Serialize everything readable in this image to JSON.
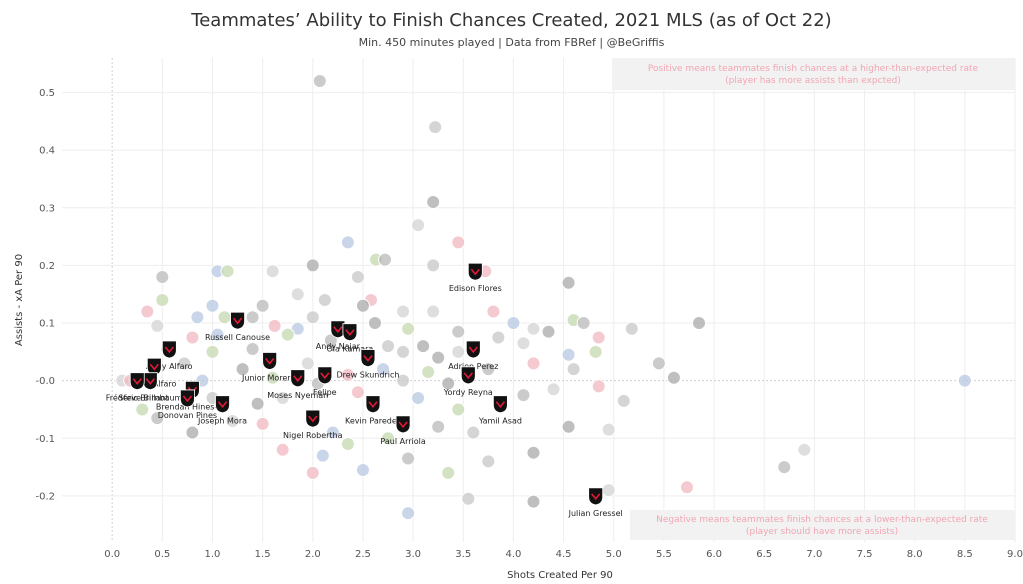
{
  "header": {
    "title": "Teammates’ Ability to Finish Chances Created, 2021 MLS (as of Oct 22)",
    "subtitle": "Min. 450 minutes played | Data from FBRef | @BeGriffis"
  },
  "colors": {
    "highlight": "#111111",
    "highlight_accent": "#e31837",
    "background_player": "#c9c9c9",
    "annotation_text": "#f2a6b3",
    "annotation_box": "#f2f2f2"
  },
  "chart_data": {
    "type": "scatter",
    "title": "Teammates’ Ability to Finish Chances Created, 2021 MLS (as of Oct 22)",
    "xlabel": "Shots Created Per 90",
    "ylabel": "Assists - xA Per 90",
    "xlim": [
      -0.5,
      9.0
    ],
    "ylim": [
      -0.28,
      0.56
    ],
    "x_ticks": [
      "0.0",
      "0.5",
      "1.0",
      "1.5",
      "2.0",
      "2.5",
      "3.0",
      "3.5",
      "4.0",
      "4.5",
      "5.0",
      "5.5",
      "6.0",
      "6.5",
      "7.0",
      "7.5",
      "8.0",
      "8.5",
      "9.0"
    ],
    "y_ticks": [
      "0.5",
      "0.4",
      "0.3",
      "0.2",
      "0.1",
      "-0.0",
      "-0.1",
      "-0.2"
    ],
    "grid": true,
    "annotations": [
      {
        "line1": "Positive means teammates finish chances at a higher-than-expected rate",
        "line2": "(player has more assists than expcted)"
      },
      {
        "line1": "Negative means teammates finish chances at a lower-than-expected rate",
        "line2": "(player should have more assists)"
      }
    ],
    "highlighted_players": [
      {
        "name": "Edison Flores",
        "x": 3.62,
        "y": 0.19
      },
      {
        "name": "Russell Canouse",
        "x": 1.25,
        "y": 0.105
      },
      {
        "name": "Andy Najar",
        "x": 2.25,
        "y": 0.09
      },
      {
        "name": "Ola Kamara",
        "x": 2.37,
        "y": 0.085
      },
      {
        "name": "Drew Skundrich",
        "x": 2.55,
        "y": 0.04
      },
      {
        "name": "Adrien Perez",
        "x": 3.6,
        "y": 0.055
      },
      {
        "name": "Andy Alfaro",
        "x": 0.57,
        "y": 0.055
      },
      {
        "name": "Junior Moreno",
        "x": 1.57,
        "y": 0.035
      },
      {
        "name": "Tony Alfaro",
        "x": 0.42,
        "y": 0.025
      },
      {
        "name": "Felipe",
        "x": 2.12,
        "y": 0.01
      },
      {
        "name": "Moses Nyeman",
        "x": 1.85,
        "y": 0.005
      },
      {
        "name": "Yordy Reyna",
        "x": 3.55,
        "y": 0.01
      },
      {
        "name": "Steve Birnbaum",
        "x": 0.38,
        "y": 0.0
      },
      {
        "name": "Frédéric Brillant",
        "x": 0.25,
        "y": 0.0
      },
      {
        "name": "Brendan Hines-Ike",
        "x": 0.8,
        "y": -0.015
      },
      {
        "name": "Donovan Pines",
        "x": 0.75,
        "y": -0.03
      },
      {
        "name": "Joseph Mora",
        "x": 1.1,
        "y": -0.04
      },
      {
        "name": "Kevin Paredes",
        "x": 2.6,
        "y": -0.04
      },
      {
        "name": "Yamil Asad",
        "x": 3.87,
        "y": -0.04
      },
      {
        "name": "Nigel Robertha",
        "x": 2.0,
        "y": -0.065
      },
      {
        "name": "Paul Arriola",
        "x": 2.9,
        "y": -0.075
      },
      {
        "name": "Julian Gressel",
        "x": 4.82,
        "y": -0.2
      }
    ],
    "other_players": [
      [
        2.07,
        0.52
      ],
      [
        3.22,
        0.44
      ],
      [
        3.2,
        0.31
      ],
      [
        3.05,
        0.27
      ],
      [
        3.45,
        0.24
      ],
      [
        2.35,
        0.24
      ],
      [
        2.63,
        0.21
      ],
      [
        2.72,
        0.21
      ],
      [
        3.2,
        0.2
      ],
      [
        2.0,
        0.2
      ],
      [
        1.6,
        0.19
      ],
      [
        3.72,
        0.19
      ],
      [
        1.05,
        0.19
      ],
      [
        1.15,
        0.19
      ],
      [
        0.5,
        0.18
      ],
      [
        2.45,
        0.18
      ],
      [
        4.55,
        0.17
      ],
      [
        1.85,
        0.15
      ],
      [
        2.58,
        0.14
      ],
      [
        1.0,
        0.13
      ],
      [
        0.5,
        0.14
      ],
      [
        1.5,
        0.13
      ],
      [
        2.12,
        0.14
      ],
      [
        2.5,
        0.13
      ],
      [
        3.2,
        0.12
      ],
      [
        0.35,
        0.12
      ],
      [
        0.85,
        0.11
      ],
      [
        1.12,
        0.11
      ],
      [
        1.4,
        0.11
      ],
      [
        2.0,
        0.11
      ],
      [
        2.62,
        0.1
      ],
      [
        2.9,
        0.12
      ],
      [
        3.8,
        0.12
      ],
      [
        4.0,
        0.1
      ],
      [
        4.6,
        0.105
      ],
      [
        4.7,
        0.1
      ],
      [
        5.18,
        0.09
      ],
      [
        5.85,
        0.1
      ],
      [
        0.45,
        0.095
      ],
      [
        1.62,
        0.095
      ],
      [
        1.85,
        0.09
      ],
      [
        2.95,
        0.09
      ],
      [
        3.45,
        0.085
      ],
      [
        3.85,
        0.075
      ],
      [
        4.35,
        0.085
      ],
      [
        4.2,
        0.09
      ],
      [
        0.8,
        0.075
      ],
      [
        1.05,
        0.08
      ],
      [
        1.75,
        0.08
      ],
      [
        2.18,
        0.07
      ],
      [
        2.75,
        0.06
      ],
      [
        3.1,
        0.06
      ],
      [
        4.1,
        0.065
      ],
      [
        4.85,
        0.075
      ],
      [
        0.55,
        0.055
      ],
      [
        1.0,
        0.05
      ],
      [
        1.4,
        0.055
      ],
      [
        2.9,
        0.05
      ],
      [
        3.25,
        0.04
      ],
      [
        3.45,
        0.05
      ],
      [
        4.2,
        0.03
      ],
      [
        4.55,
        0.045
      ],
      [
        4.82,
        0.05
      ],
      [
        5.45,
        0.03
      ],
      [
        0.72,
        0.03
      ],
      [
        1.3,
        0.02
      ],
      [
        1.95,
        0.03
      ],
      [
        2.35,
        0.01
      ],
      [
        2.7,
        0.02
      ],
      [
        3.15,
        0.015
      ],
      [
        3.75,
        0.02
      ],
      [
        4.6,
        0.02
      ],
      [
        5.6,
        0.005
      ],
      [
        0.1,
        0.0
      ],
      [
        0.18,
        0.0
      ],
      [
        0.9,
        0.0
      ],
      [
        1.6,
        0.005
      ],
      [
        2.05,
        -0.005
      ],
      [
        2.9,
        0.0
      ],
      [
        3.35,
        -0.005
      ],
      [
        4.4,
        -0.015
      ],
      [
        4.85,
        -0.01
      ],
      [
        8.5,
        0.0
      ],
      [
        0.3,
        -0.05
      ],
      [
        0.45,
        -0.065
      ],
      [
        1.0,
        -0.03
      ],
      [
        1.45,
        -0.04
      ],
      [
        1.7,
        -0.03
      ],
      [
        2.45,
        -0.02
      ],
      [
        3.05,
        -0.03
      ],
      [
        3.45,
        -0.05
      ],
      [
        4.1,
        -0.025
      ],
      [
        5.1,
        -0.035
      ],
      [
        0.8,
        -0.09
      ],
      [
        1.2,
        -0.07
      ],
      [
        1.5,
        -0.075
      ],
      [
        2.2,
        -0.09
      ],
      [
        2.75,
        -0.1
      ],
      [
        3.25,
        -0.08
      ],
      [
        3.6,
        -0.09
      ],
      [
        4.55,
        -0.08
      ],
      [
        4.95,
        -0.085
      ],
      [
        1.7,
        -0.12
      ],
      [
        2.1,
        -0.13
      ],
      [
        2.35,
        -0.11
      ],
      [
        2.95,
        -0.135
      ],
      [
        3.75,
        -0.14
      ],
      [
        4.2,
        -0.125
      ],
      [
        6.9,
        -0.12
      ],
      [
        2.0,
        -0.16
      ],
      [
        2.5,
        -0.155
      ],
      [
        3.35,
        -0.16
      ],
      [
        6.7,
        -0.15
      ],
      [
        3.55,
        -0.205
      ],
      [
        4.2,
        -0.21
      ],
      [
        4.95,
        -0.19
      ],
      [
        5.73,
        -0.185
      ],
      [
        2.95,
        -0.23
      ]
    ]
  }
}
